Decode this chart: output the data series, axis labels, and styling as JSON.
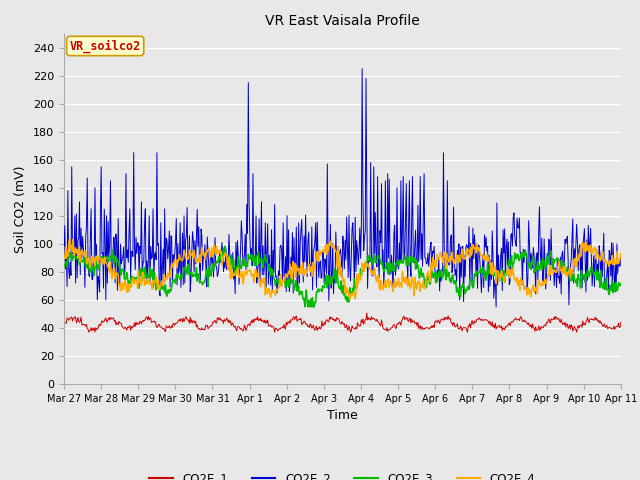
{
  "title": "VR East Vaisala Profile",
  "xlabel": "Time",
  "ylabel": "Soil CO2 (mV)",
  "ylim": [
    0,
    250
  ],
  "yticks": [
    0,
    20,
    40,
    60,
    80,
    100,
    120,
    140,
    160,
    180,
    200,
    220,
    240
  ],
  "fig_bg": "#e8e8e8",
  "plot_bg": "#e8e8e8",
  "series_colors": {
    "CO2E_1": "#cc0000",
    "CO2E_2": "#0000cc",
    "CO2E_3": "#00bb00",
    "CO2E_4": "#ffaa00"
  },
  "annotation_text": "VR_soilco2",
  "annotation_color": "#cc0000",
  "annotation_bg": "#ffffcc",
  "annotation_border": "#cc9900",
  "x_tick_labels": [
    "Mar 27",
    "Mar 28",
    "Mar 29",
    "Mar 30",
    "Mar 31",
    "Apr 1",
    "Apr 2",
    "Apr 3",
    "Apr 4",
    "Apr 5",
    "Apr 6",
    "Apr 7",
    "Apr 8",
    "Apr 9",
    "Apr 10",
    "Apr 11"
  ],
  "num_days": 15,
  "pts_per_day": 48
}
